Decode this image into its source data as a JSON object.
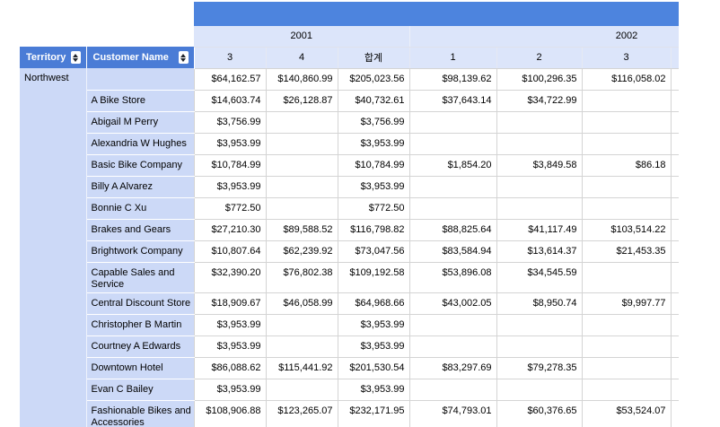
{
  "colors": {
    "title_bar": "#4d84de",
    "header_blue": "#4a7cd6",
    "group_light_blue": "#dce5fa",
    "row_header_blue": "#ccd9f7",
    "grid_line": "#d4d4d4"
  },
  "table": {
    "row_header_labels": {
      "territory": "Territory",
      "customer": "Customer Name"
    },
    "year_groups": [
      {
        "label": "2001"
      },
      {
        "label": "2002"
      }
    ],
    "columns": [
      "3",
      "4",
      "합계",
      "1",
      "2",
      "3"
    ],
    "rows": [
      {
        "territory": "Northwest",
        "customer": "",
        "values": [
          "$64,162.57",
          "$140,860.99",
          "$205,023.56",
          "$98,139.62",
          "$100,296.35",
          "$116,058.02"
        ]
      },
      {
        "customer": "A Bike Store",
        "values": [
          "$14,603.74",
          "$26,128.87",
          "$40,732.61",
          "$37,643.14",
          "$34,722.99",
          ""
        ]
      },
      {
        "customer": "Abigail M Perry",
        "values": [
          "$3,756.99",
          "",
          "$3,756.99",
          "",
          "",
          ""
        ]
      },
      {
        "customer": "Alexandria W Hughes",
        "values": [
          "$3,953.99",
          "",
          "$3,953.99",
          "",
          "",
          ""
        ]
      },
      {
        "customer": "Basic Bike Company",
        "values": [
          "$10,784.99",
          "",
          "$10,784.99",
          "$1,854.20",
          "$3,849.58",
          "$86.18"
        ]
      },
      {
        "customer": "Billy A Alvarez",
        "values": [
          "$3,953.99",
          "",
          "$3,953.99",
          "",
          "",
          ""
        ]
      },
      {
        "customer": "Bonnie C Xu",
        "values": [
          "$772.50",
          "",
          "$772.50",
          "",
          "",
          ""
        ]
      },
      {
        "customer": "Brakes and Gears",
        "values": [
          "$27,210.30",
          "$89,588.52",
          "$116,798.82",
          "$88,825.64",
          "$41,117.49",
          "$103,514.22"
        ]
      },
      {
        "customer": "Brightwork Company",
        "values": [
          "$10,807.64",
          "$62,239.92",
          "$73,047.56",
          "$83,584.94",
          "$13,614.37",
          "$21,453.35"
        ]
      },
      {
        "customer": "Capable Sales and Service",
        "values": [
          "$32,390.20",
          "$76,802.38",
          "$109,192.58",
          "$53,896.08",
          "$34,545.59",
          ""
        ]
      },
      {
        "customer": "Central Discount Store",
        "values": [
          "$18,909.67",
          "$46,058.99",
          "$64,968.66",
          "$43,002.05",
          "$8,950.74",
          "$9,997.77"
        ]
      },
      {
        "customer": "Christopher B Martin",
        "values": [
          "$3,953.99",
          "",
          "$3,953.99",
          "",
          "",
          ""
        ]
      },
      {
        "customer": "Courtney A Edwards",
        "values": [
          "$3,953.99",
          "",
          "$3,953.99",
          "",
          "",
          ""
        ]
      },
      {
        "customer": "Downtown Hotel",
        "values": [
          "$86,088.62",
          "$115,441.92",
          "$201,530.54",
          "$83,297.69",
          "$79,278.35",
          ""
        ]
      },
      {
        "customer": "Evan C Bailey",
        "values": [
          "$3,953.99",
          "",
          "$3,953.99",
          "",
          "",
          ""
        ]
      },
      {
        "customer": "Fashionable Bikes and Accessories",
        "values": [
          "$108,906.88",
          "$123,265.07",
          "$232,171.95",
          "$74,793.01",
          "$60,376.65",
          "$53,524.07"
        ]
      }
    ]
  }
}
